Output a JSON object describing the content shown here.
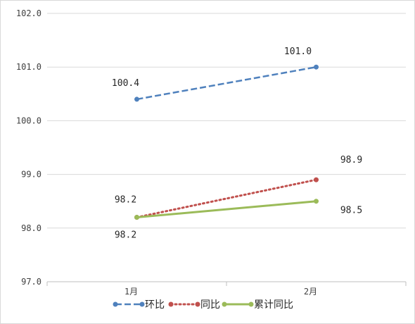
{
  "chart_data": {
    "type": "line",
    "categories": [
      "1月",
      "2月"
    ],
    "ylim": [
      97.0,
      102.0
    ],
    "yticks": [
      "97.0",
      "98.0",
      "99.0",
      "100.0",
      "101.0",
      "102.0"
    ],
    "grid": true,
    "legend_position": "bottom",
    "series": [
      {
        "name": "环比",
        "values": [
          100.4,
          101.0
        ],
        "labels": [
          "100.4",
          "101.0"
        ],
        "color": "#4f81bd",
        "style": "dashed"
      },
      {
        "name": "同比",
        "values": [
          98.2,
          98.9
        ],
        "labels": [
          "98.2",
          "98.9"
        ],
        "color": "#c0504d",
        "style": "dotted"
      },
      {
        "name": "累计同比",
        "values": [
          98.2,
          98.5
        ],
        "labels": [
          "98.2",
          "98.5"
        ],
        "color": "#9bbb59",
        "style": "solid"
      }
    ]
  }
}
